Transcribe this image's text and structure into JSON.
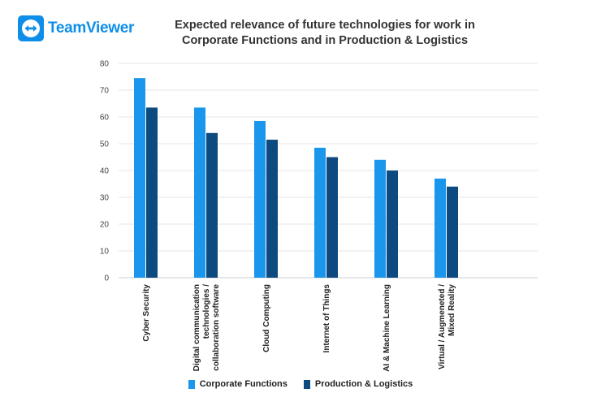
{
  "brand": {
    "logo_text": "TeamViewer",
    "logo_color": "#0e8ee9"
  },
  "chart_data": {
    "type": "bar",
    "title_lines": [
      "Expected relevance of future technologies for work in",
      "Corporate Functions and in Production & Logistics"
    ],
    "categories": [
      [
        "Cyber Security"
      ],
      [
        "Digital communication",
        "technologies /",
        "collaboration software"
      ],
      [
        "Cloud Computing"
      ],
      [
        "Internet of Things"
      ],
      [
        "AI & Machine Learning"
      ],
      [
        "Virtual / Augmeneted /",
        "Mixed Reality"
      ]
    ],
    "series": [
      {
        "name": "Corporate Functions",
        "color": "#1a96ec",
        "values": [
          74.5,
          63.5,
          58.5,
          48.5,
          44,
          37
        ]
      },
      {
        "name": "Production & Logistics",
        "color": "#0d4a80",
        "values": [
          63.5,
          54,
          51.5,
          45,
          40,
          34
        ]
      }
    ],
    "ylim": [
      0,
      80
    ],
    "yticks": [
      0,
      10,
      20,
      30,
      40,
      50,
      60,
      70,
      80
    ],
    "grid": true,
    "legend_position": "bottom"
  }
}
